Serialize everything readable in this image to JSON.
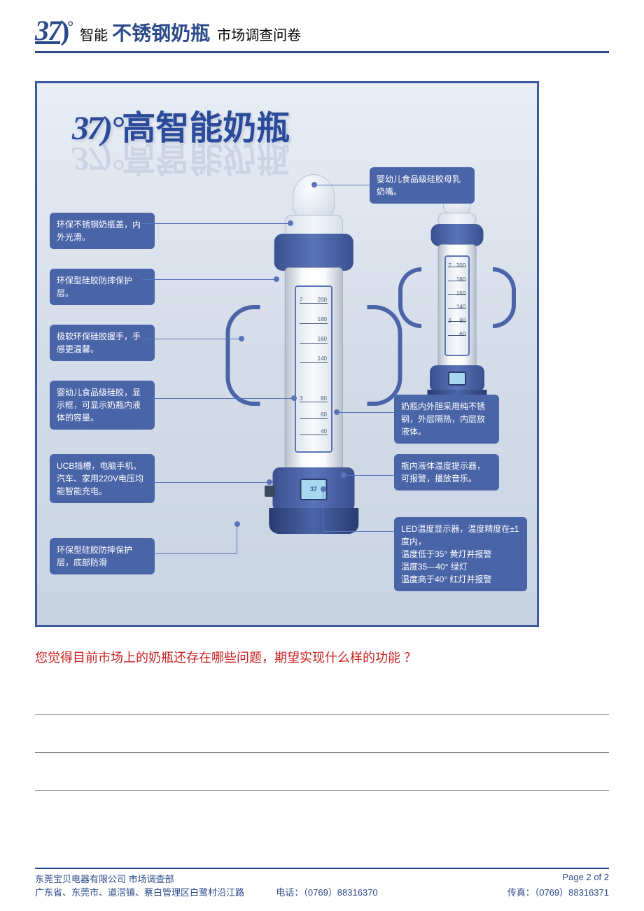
{
  "header": {
    "logo_number": "37",
    "logo_degree": "°",
    "smart": "智能",
    "main": "不锈钢奶瓶",
    "tail": "市场调查问卷"
  },
  "infographic": {
    "title_37": "37)°",
    "title_text": "高智能奶瓶",
    "led_display": "37",
    "scale_big": [
      {
        "t": 10,
        "n": "200",
        "l": "7"
      },
      {
        "t": 22,
        "n": "180"
      },
      {
        "t": 34,
        "n": "160"
      },
      {
        "t": 46,
        "n": "140"
      },
      {
        "t": 70,
        "n": "80",
        "l": "3"
      },
      {
        "t": 80,
        "n": "60"
      },
      {
        "t": 90,
        "n": "40"
      }
    ],
    "scale_small": [
      {
        "t": 10,
        "n": "200",
        "l": "7"
      },
      {
        "t": 24,
        "n": "180"
      },
      {
        "t": 38,
        "n": "160"
      },
      {
        "t": 52,
        "n": "140"
      },
      {
        "t": 66,
        "n": "80",
        "l": "3"
      },
      {
        "t": 80,
        "n": "60"
      }
    ],
    "callouts": {
      "c1": "环保不锈钢奶瓶盖，内外光滑。",
      "c2": "环保型硅胶防摔保护层。",
      "c3": "极软环保硅胶握手，手感更温馨。",
      "c4": "婴幼儿食品级硅胶，显示框，可显示奶瓶内液体的容量。",
      "c5": "UCB插槽，电脑手机、汽车、家用220V电压均能智能充电。",
      "c6": "环保型硅胶防摔保护层，底部防滑",
      "c7": "婴幼儿食品级硅胶母乳奶嘴。",
      "c8": "奶瓶内外胆采用纯不锈钢，外层隔热，内层放液体。",
      "c9": "瓶内液体温度提示器，可报警，播放音乐。",
      "c10": "LED温度显示器，温度精度在±1度内，\n温度低于35°  黄灯并报警\n温度35—40°  绿灯\n温度高于40°  红灯并报警"
    }
  },
  "question": "您觉得目前市场上的奶瓶还存在哪些问题，期望实现什么样的功能 ？",
  "footer": {
    "company": "东莞宝贝电器有限公司 市场调查部",
    "page": "Page 2 of 2",
    "address": "广东省、东莞市、道滘镇、蔡白管理区白鹭村沿江路",
    "phone": "电话：（0769）88316370",
    "fax": "传真：（0769）88316371"
  }
}
